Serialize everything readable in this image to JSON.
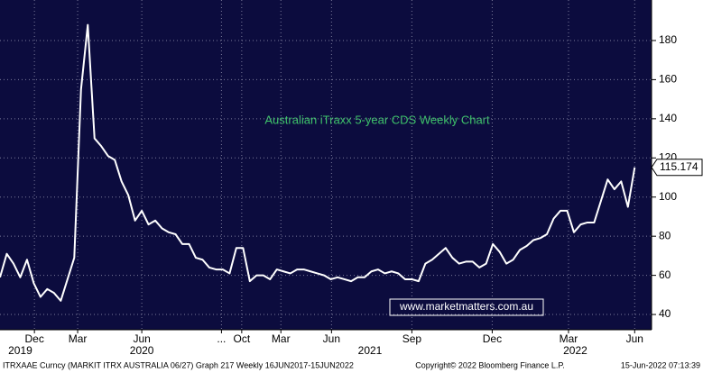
{
  "chart_data": {
    "type": "line",
    "title": "Australian iTraxx 5-year CDS Weekly Chart",
    "watermark": "www.marketmatters.com.au",
    "footer_left": "ITRXAAE Curncy (MARKIT ITRX AUSTRALIA 06/27) Graph 217  Weekly 16JUN2017-15JUN2022",
    "footer_center": "Copyright© 2022 Bloomberg Finance L.P.",
    "footer_right": "15-Jun-2022 07:13:39",
    "series": [
      {
        "name": "ITRXAAE Curncy",
        "color": "#ffffff",
        "values": [
          59,
          71,
          66,
          59,
          68,
          56,
          49,
          53,
          51,
          47,
          58,
          69,
          155,
          188,
          130,
          126,
          121,
          119,
          108,
          101,
          88,
          93,
          86,
          88,
          84,
          82,
          81,
          76,
          76,
          69,
          68,
          64,
          63,
          63,
          61,
          74,
          74,
          57,
          60,
          60,
          58,
          63,
          62,
          61,
          63,
          63,
          62,
          61,
          60,
          58,
          59,
          58,
          57,
          59,
          59,
          62,
          63,
          61,
          62,
          61,
          58,
          58,
          57,
          66,
          68,
          71,
          74,
          69,
          66,
          67,
          67,
          64,
          66,
          76,
          72,
          66,
          68,
          73,
          75,
          78,
          79,
          81,
          89,
          93,
          93,
          82,
          86,
          87,
          87,
          98,
          109,
          104,
          108,
          95,
          115.174
        ]
      }
    ],
    "xlim": [
      0,
      96.5
    ],
    "xticks": [
      {
        "value": 5.1,
        "label": "Dec"
      },
      {
        "value": 11.5,
        "label": "Mar"
      },
      {
        "value": 21.0,
        "label": "Jun"
      },
      {
        "value": 32.8,
        "label": "..."
      },
      {
        "value": 35.8,
        "label": "Oct"
      },
      {
        "value": 41.6,
        "label": "Mar"
      },
      {
        "value": 49.1,
        "label": "Jun"
      },
      {
        "value": 61.0,
        "label": "Sep"
      },
      {
        "value": 72.9,
        "label": "Dec"
      },
      {
        "value": 84.2,
        "label": "Mar"
      },
      {
        "value": 94.0,
        "label": "Jun"
      }
    ],
    "year_ticks": [
      {
        "value": 3.0,
        "label": "2019"
      },
      {
        "value": 21.0,
        "label": "2020"
      },
      {
        "value": 54.8,
        "label": "2021"
      },
      {
        "value": 85.2,
        "label": "2022"
      }
    ],
    "ylim": [
      32.2,
      200.7
    ],
    "yticks": [
      40,
      60,
      80,
      100,
      120,
      140,
      160,
      180
    ],
    "grid": true
  }
}
